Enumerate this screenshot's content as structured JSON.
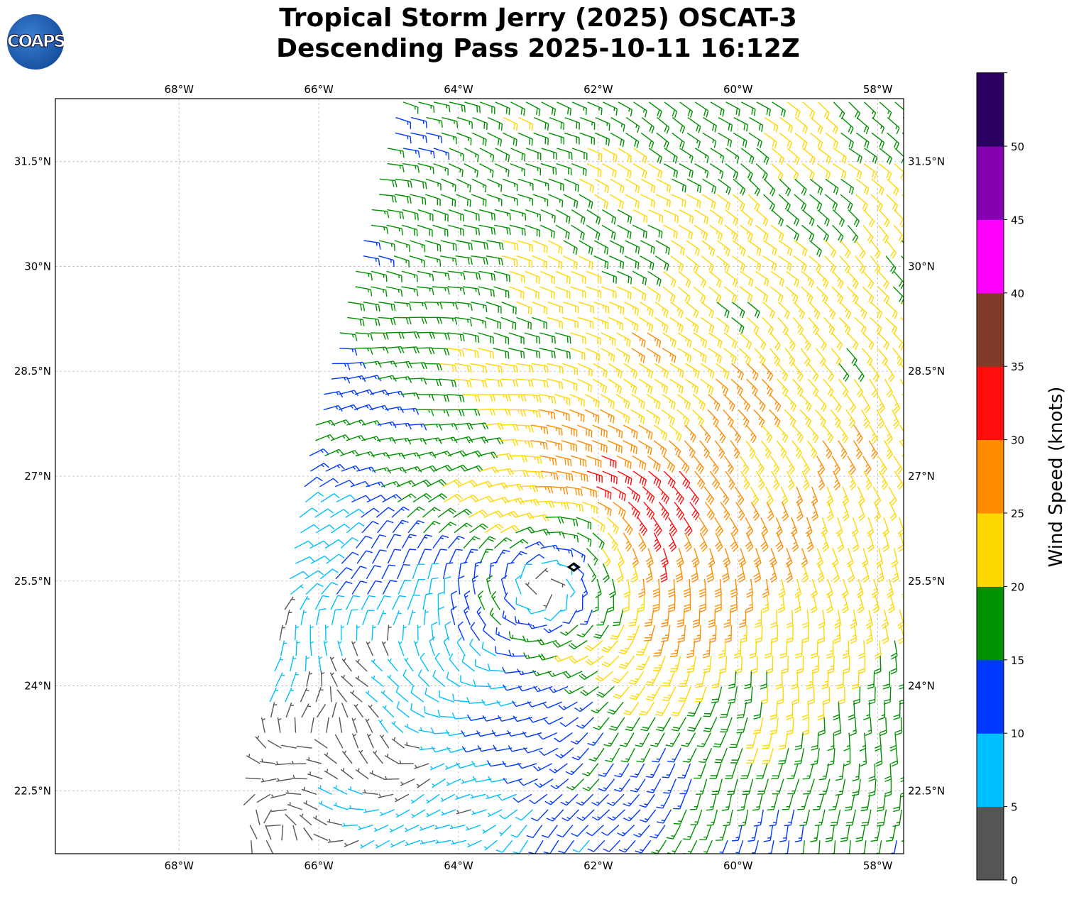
{
  "title_line1": "Tropical Storm Jerry (2025) OSCAT-3",
  "title_line2": "Descending Pass 2025-10-11 16:12Z",
  "logo_text": "COAPS",
  "chart_data": {
    "type": "wind-barb-map",
    "lon_range": [
      -69.77,
      -57.63
    ],
    "lat_range": [
      21.6,
      32.4
    ],
    "lon_ticks": [
      {
        "v": -68,
        "label": "68°W"
      },
      {
        "v": -66,
        "label": "66°W"
      },
      {
        "v": -64,
        "label": "64°W"
      },
      {
        "v": -62,
        "label": "62°W"
      },
      {
        "v": -60,
        "label": "60°W"
      },
      {
        "v": -58,
        "label": "58°W"
      }
    ],
    "lat_ticks": [
      {
        "v": 31.5,
        "label": "31.5°N"
      },
      {
        "v": 30,
        "label": "30°N"
      },
      {
        "v": 28.5,
        "label": "28.5°N"
      },
      {
        "v": 27,
        "label": "27°N"
      },
      {
        "v": 25.5,
        "label": "25.5°N"
      },
      {
        "v": 24,
        "label": "24°N"
      },
      {
        "v": 22.5,
        "label": "22.5°N"
      }
    ],
    "grid": true,
    "storm_center": {
      "lon": -62.35,
      "lat": 25.7
    },
    "swath_left_edge": [
      {
        "lat": 32.4,
        "lon": -64.88
      },
      {
        "lat": 27.5,
        "lon": -66.15
      },
      {
        "lat": 21.6,
        "lon": -67.1
      }
    ],
    "wind_model": {
      "vmax_kt": 24,
      "rmax_deg": 1.2,
      "bg_u_kt": -6,
      "bg_v_kt": 8,
      "spacing_deg": 0.22
    },
    "colorbar": {
      "label": "Wind Speed (knots)",
      "levels": [
        0,
        5,
        10,
        15,
        20,
        25,
        30,
        35,
        40,
        45,
        50,
        55
      ],
      "tick_labels": [
        "0",
        "5",
        "10",
        "15",
        "20",
        "25",
        "30",
        "35",
        "40",
        "45",
        "50"
      ],
      "colors": [
        "#555555",
        "#00bfff",
        "#0038ff",
        "#009100",
        "#ffd700",
        "#ff8c00",
        "#ff0d0d",
        "#7f3b28",
        "#ff00ff",
        "#8400b0",
        "#2a0060"
      ]
    }
  }
}
